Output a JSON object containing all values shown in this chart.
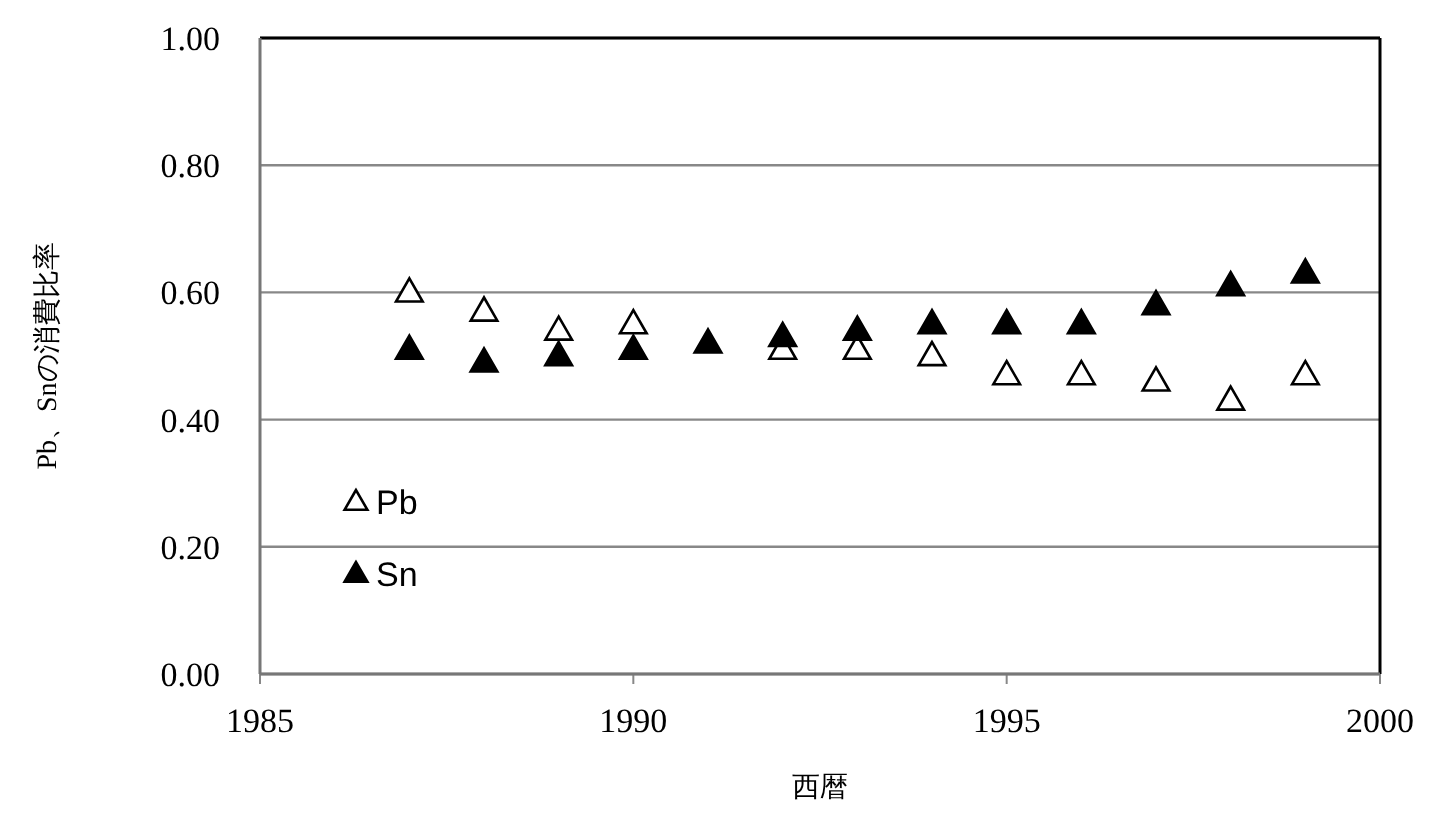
{
  "chart_data": {
    "type": "scatter",
    "xlabel": "西暦",
    "ylabel": "Pb、Snの消費比率",
    "x": [
      1987,
      1988,
      1989,
      1990,
      1991,
      1992,
      1993,
      1994,
      1995,
      1996,
      1997,
      1998,
      1999
    ],
    "series": [
      {
        "name": "Pb",
        "color": "#000000",
        "values": [
          0.6,
          0.57,
          0.54,
          0.55,
          null,
          0.51,
          0.51,
          0.5,
          0.47,
          0.47,
          0.46,
          0.43,
          0.47
        ]
      },
      {
        "name": "Sn",
        "color": "#000000",
        "values": [
          0.51,
          0.49,
          0.5,
          0.51,
          0.52,
          0.53,
          0.54,
          0.55,
          0.55,
          0.55,
          0.58,
          0.61,
          0.63
        ]
      }
    ],
    "xlim": [
      1985,
      2000
    ],
    "xticks": [
      {
        "value": 1985,
        "label": "1985"
      },
      {
        "value": 1990,
        "label": "1990"
      },
      {
        "value": 1995,
        "label": "1995"
      },
      {
        "value": 2000,
        "label": "2000"
      }
    ],
    "ylim": [
      0,
      1
    ],
    "yticks": [
      {
        "value": 0,
        "label": "0.00"
      },
      {
        "value": 0.2,
        "label": "0.20"
      },
      {
        "value": 0.4,
        "label": "0.40"
      },
      {
        "value": 0.6,
        "label": "0.60"
      },
      {
        "value": 0.8,
        "label": "0.80"
      },
      {
        "value": 1,
        "label": "1.00"
      }
    ],
    "grid": "y",
    "legend": "bottom left",
    "marker": "triangle"
  }
}
